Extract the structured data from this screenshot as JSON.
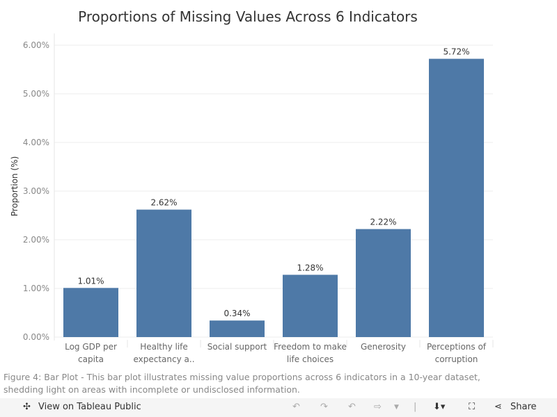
{
  "chart_data": {
    "type": "bar",
    "title": "Proportions of Missing Values Across 6 Indicators",
    "xlabel": "",
    "ylabel": "Proportion (%)",
    "ylim": [
      0,
      6.2
    ],
    "yticks": [
      "0.00%",
      "1.00%",
      "2.00%",
      "3.00%",
      "4.00%",
      "5.00%",
      "6.00%"
    ],
    "categories": [
      [
        "Log GDP per",
        "capita"
      ],
      [
        "Healthy life",
        "expectancy a.."
      ],
      [
        "Social support"
      ],
      [
        "Freedom to make",
        "life choices"
      ],
      [
        "Generosity"
      ],
      [
        "Perceptions of",
        "corruption"
      ]
    ],
    "values": [
      1.01,
      2.62,
      0.34,
      1.28,
      2.22,
      5.72
    ],
    "data_labels": [
      "1.01%",
      "2.62%",
      "0.34%",
      "1.28%",
      "2.22%",
      "5.72%"
    ],
    "grid": true,
    "bar_color": "#4e79a7"
  },
  "caption": "Figure 4: Bar Plot - This bar plot illustrates missing value proportions across 6 indicators in a 10-year dataset, shedding light on areas with incomplete or undisclosed information.",
  "toolbar": {
    "view_label": "View on Tableau Public",
    "share_label": "Share"
  }
}
